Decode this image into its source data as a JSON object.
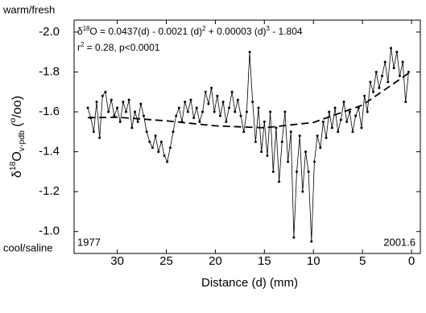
{
  "chart_data": {
    "type": "line",
    "top_label": "warm/fresh",
    "bottom_label": "cool/saline",
    "equation_parts": [
      "δ",
      "18",
      "O = 0.0437(d) - 0.0021 (d)",
      "2",
      " + 0.00003 (d)",
      "3",
      "  - 1.804"
    ],
    "stats_parts": [
      "r",
      "2",
      " = 0.28, p<0.0001"
    ],
    "start_label": "1977",
    "end_label": "2001.6",
    "ylabel_parts": [
      "δ",
      "18",
      "O",
      "v-pdb",
      " (",
      "o",
      "/oo)"
    ],
    "xlabel": "Distance (d) (mm)",
    "xlim": [
      34.4,
      -0.9
    ],
    "ylim": [
      -0.89,
      -2.06
    ],
    "xticks": [
      30,
      25,
      20,
      15,
      10,
      5,
      0
    ],
    "yticks": [
      {
        "value": -2.0,
        "label": "-2.0"
      },
      -1.8,
      -1.6,
      -1.4,
      -1.2,
      {
        "value": -1.0,
        "label": "-1.0"
      }
    ],
    "color": "#000000",
    "series": [
      {
        "x": [
          33.0,
          32.7,
          32.4,
          32.1,
          31.8,
          31.5,
          31.2,
          30.9,
          30.6,
          30.3,
          30.0,
          29.7,
          29.4,
          29.1,
          28.8,
          28.5,
          28.2,
          27.9,
          27.6,
          27.3,
          27.0,
          26.7,
          26.4,
          26.1,
          25.8,
          25.5,
          25.2,
          24.9,
          24.6,
          24.3,
          24.0,
          23.7,
          23.4,
          23.1,
          22.8,
          22.5,
          22.2,
          21.9,
          21.6,
          21.3,
          21.0,
          20.7,
          20.4,
          20.1,
          19.8,
          19.5,
          19.2,
          18.9,
          18.6,
          18.3,
          18.0,
          17.7,
          17.4,
          17.1,
          16.8,
          16.5,
          16.2,
          15.9,
          15.6,
          15.3,
          15.0,
          14.7,
          14.4,
          14.1,
          13.8,
          13.5,
          13.2,
          12.9,
          12.6,
          12.3,
          12.0,
          11.7,
          11.4,
          11.1,
          10.8,
          10.5,
          10.2,
          9.9,
          9.6,
          9.3,
          9.0,
          8.7,
          8.4,
          8.1,
          7.8,
          7.5,
          7.2,
          6.9,
          6.6,
          6.3,
          6.0,
          5.7,
          5.4,
          5.1,
          4.8,
          4.5,
          4.2,
          3.9,
          3.6,
          3.3,
          3.0,
          2.7,
          2.4,
          2.1,
          1.8,
          1.5,
          1.2,
          0.9,
          0.6,
          0.3
        ],
        "values": [
          -1.62,
          -1.57,
          -1.5,
          -1.65,
          -1.47,
          -1.68,
          -1.7,
          -1.6,
          -1.66,
          -1.58,
          -1.62,
          -1.55,
          -1.65,
          -1.6,
          -1.66,
          -1.52,
          -1.6,
          -1.55,
          -1.64,
          -1.58,
          -1.5,
          -1.45,
          -1.42,
          -1.48,
          -1.4,
          -1.45,
          -1.38,
          -1.35,
          -1.42,
          -1.5,
          -1.58,
          -1.62,
          -1.55,
          -1.65,
          -1.6,
          -1.66,
          -1.57,
          -1.62,
          -1.55,
          -1.6,
          -1.7,
          -1.64,
          -1.72,
          -1.6,
          -1.68,
          -1.58,
          -1.65,
          -1.55,
          -1.62,
          -1.7,
          -1.6,
          -1.66,
          -1.58,
          -1.5,
          -1.6,
          -1.9,
          -1.65,
          -1.45,
          -1.62,
          -1.4,
          -1.55,
          -1.38,
          -1.6,
          -1.3,
          -1.52,
          -1.25,
          -1.45,
          -1.6,
          -1.35,
          -1.5,
          -0.97,
          -1.3,
          -1.48,
          -1.2,
          -1.4,
          -1.3,
          -0.95,
          -1.35,
          -1.48,
          -1.42,
          -1.55,
          -1.47,
          -1.6,
          -1.52,
          -1.62,
          -1.5,
          -1.56,
          -1.65,
          -1.55,
          -1.6,
          -1.5,
          -1.58,
          -1.62,
          -1.52,
          -1.68,
          -1.6,
          -1.75,
          -1.7,
          -1.8,
          -1.72,
          -1.78,
          -1.85,
          -1.75,
          -1.92,
          -1.82,
          -1.9,
          -1.78,
          -1.85,
          -1.65,
          -1.8
        ]
      }
    ],
    "trend": {
      "x": [
        33,
        30,
        25,
        20,
        15,
        10,
        5,
        0
      ],
      "values": [
        -1.571,
        -1.573,
        -1.555,
        -1.53,
        -1.52,
        -1.547,
        -1.634,
        -1.804
      ]
    }
  }
}
